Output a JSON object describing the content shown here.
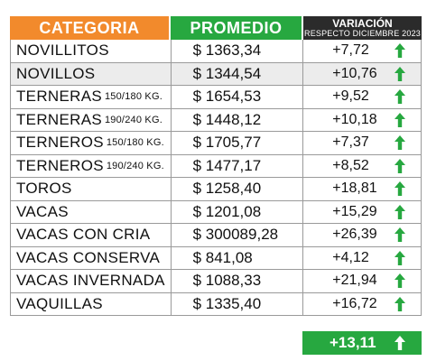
{
  "header": {
    "categoria": "CATEGORIA",
    "promedio": "PROMEDIO",
    "variacion": "VARIACIÓN",
    "variacion_sub": "RESPECTO DICIEMBRE 2023"
  },
  "rows": [
    {
      "name": "NOVILLITOS",
      "sub": "",
      "promedio": "$ 1363,34",
      "variacion": "+7,72",
      "shaded": false
    },
    {
      "name": "NOVILLOS",
      "sub": "",
      "promedio": "$ 1344,54",
      "variacion": "+10,76",
      "shaded": true
    },
    {
      "name": "TERNERAS",
      "sub": "150/180 KG.",
      "promedio": "$ 1654,53",
      "variacion": "+9,52",
      "shaded": false
    },
    {
      "name": "TERNERAS",
      "sub": "190/240 KG.",
      "promedio": "$ 1448,12",
      "variacion": "+10,18",
      "shaded": false
    },
    {
      "name": "TERNEROS",
      "sub": "150/180 KG.",
      "promedio": "$ 1705,77",
      "variacion": "+7,37",
      "shaded": false
    },
    {
      "name": "TERNEROS",
      "sub": "190/240 KG.",
      "promedio": "$ 1477,17",
      "variacion": "+8,52",
      "shaded": false
    },
    {
      "name": "TOROS",
      "sub": "",
      "promedio": "$ 1258,40",
      "variacion": "+18,81",
      "shaded": false
    },
    {
      "name": "VACAS",
      "sub": "",
      "promedio": "$ 1201,08",
      "variacion": "+15,29",
      "shaded": false
    },
    {
      "name": "VACAS CON CRIA",
      "sub": "",
      "promedio": "$ 300089,28",
      "variacion": "+26,39",
      "shaded": false
    },
    {
      "name": "VACAS CONSERVA",
      "sub": "",
      "promedio": "$ 841,08",
      "variacion": "+4,12",
      "shaded": false
    },
    {
      "name": "VACAS INVERNADA",
      "sub": "",
      "promedio": "$ 1088,33",
      "variacion": "+21,94",
      "shaded": false
    },
    {
      "name": "VAQUILLAS",
      "sub": "",
      "promedio": "$ 1335,40",
      "variacion": "+16,72",
      "shaded": false
    }
  ],
  "total": {
    "variacion": "+13,11"
  },
  "icons": {
    "row_trend": "arrow-up-icon",
    "total_trend": "arrow-up-icon"
  },
  "colors": {
    "categoria_header": "#f28a2c",
    "promedio_header": "#27a840",
    "variacion_header": "#2b2b2b",
    "arrow_up": "#27a840",
    "total_bg": "#27a840",
    "total_arrow": "#ffffff"
  }
}
